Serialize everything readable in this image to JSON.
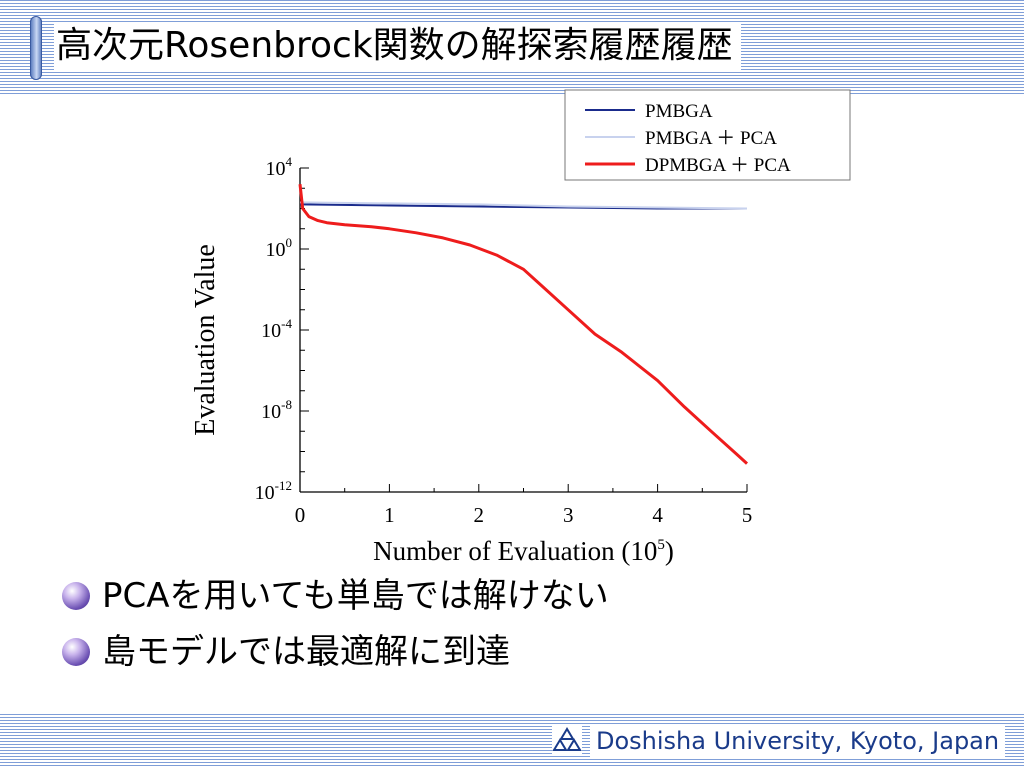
{
  "slide": {
    "title": "高次元Rosenbrock関数の解探索履歴履歴",
    "bullets": [
      "PCAを用いても単島では解けない",
      "島モデルでは最適解に到達"
    ],
    "footer": "Doshisha University, Kyoto, Japan",
    "footer_logo_icon": "doshisha-triangle-logo"
  },
  "chart_data": {
    "type": "line",
    "xlabel_main": "Number of Evaluation (10",
    "xlabel_exp": "5",
    "xlabel_tail": ")",
    "ylabel": "Evaluation Value",
    "x_ticks": [
      "0",
      "1",
      "2",
      "3",
      "4",
      "5"
    ],
    "y_ticks": [
      {
        "base": "10",
        "exp": "4"
      },
      {
        "base": "10",
        "exp": "0"
      },
      {
        "base": "10",
        "exp": "-4"
      },
      {
        "base": "10",
        "exp": "-8"
      },
      {
        "base": "10",
        "exp": "-12"
      }
    ],
    "xlim": [
      0,
      5
    ],
    "ylim_log10": [
      -12,
      4
    ],
    "legend_position": "top-right",
    "series": [
      {
        "name": "PMBGA",
        "color": "#1a2b8c",
        "x": [
          0,
          1,
          2,
          3,
          4,
          5
        ],
        "y_log10": [
          2.2,
          2.15,
          2.1,
          2.05,
          2.0,
          2.0
        ]
      },
      {
        "name": "PMBGA ＋ PCA",
        "color": "#c8d2ee",
        "x": [
          0,
          1,
          2,
          3,
          4,
          5
        ],
        "y_log10": [
          2.3,
          2.25,
          2.2,
          2.1,
          2.05,
          2.0
        ]
      },
      {
        "name": "DPMBGA ＋ PCA",
        "color": "#ee1c1c",
        "x": [
          0,
          0.03,
          0.1,
          0.2,
          0.3,
          0.5,
          0.8,
          1.0,
          1.3,
          1.6,
          1.9,
          2.2,
          2.5,
          2.7,
          3.0,
          3.3,
          3.6,
          4.0,
          4.3,
          4.6,
          4.9,
          5.0
        ],
        "y_log10": [
          3.2,
          2.0,
          1.6,
          1.4,
          1.3,
          1.2,
          1.1,
          1.0,
          0.8,
          0.55,
          0.2,
          -0.3,
          -1.0,
          -1.8,
          -3.0,
          -4.2,
          -5.1,
          -6.5,
          -7.8,
          -9.0,
          -10.2,
          -10.6
        ]
      }
    ]
  }
}
